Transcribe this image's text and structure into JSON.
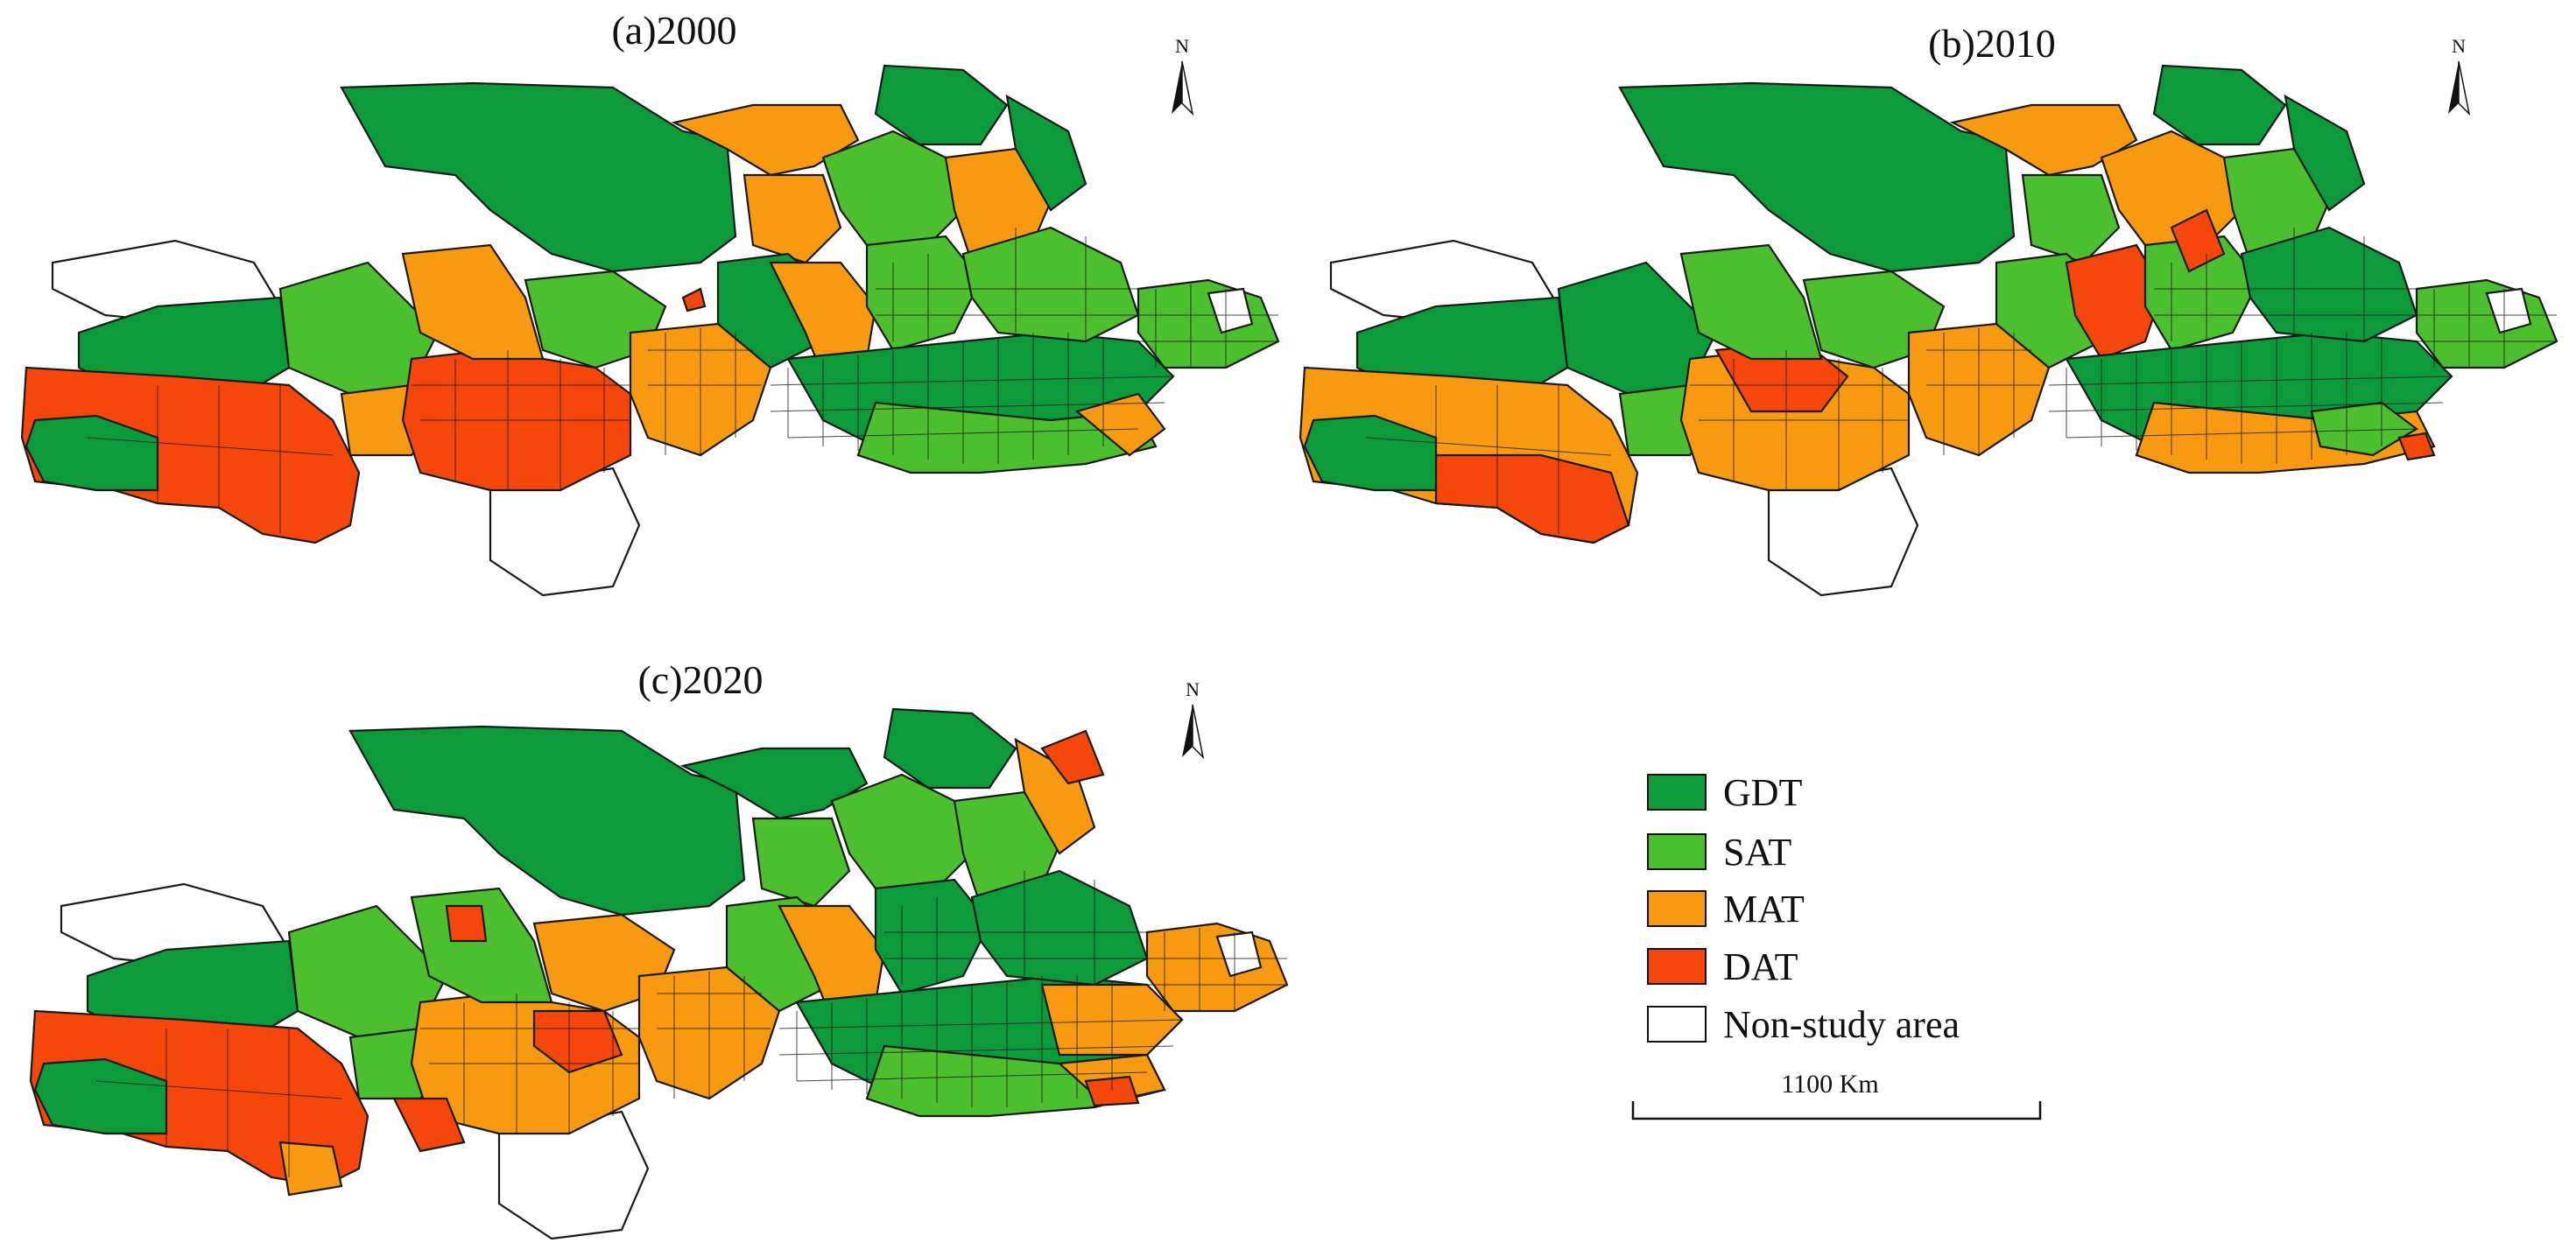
{
  "colors": {
    "GDT": "#0c9a3b",
    "SAT": "#4cbf2e",
    "MAT": "#f79a12",
    "DAT": "#f5470b",
    "Non-study area": "#ffffff"
  },
  "panels": [
    {
      "title": "(a)2000",
      "north": "N"
    },
    {
      "title": "(b)2010",
      "north": "N"
    },
    {
      "title": "(c)2020",
      "north": "N"
    }
  ],
  "legend": [
    {
      "key": "GDT",
      "label": "GDT"
    },
    {
      "key": "SAT",
      "label": "SAT"
    },
    {
      "key": "MAT",
      "label": "MAT"
    },
    {
      "key": "DAT",
      "label": "DAT"
    },
    {
      "key": "Non-study area",
      "label": "Non-study area"
    }
  ],
  "scale_bar": {
    "label": "1100  Km"
  }
}
